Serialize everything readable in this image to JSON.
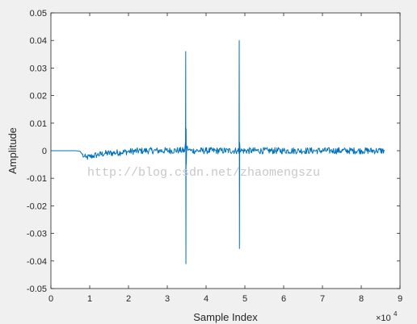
{
  "chart_data": {
    "type": "line",
    "xlabel": "Sample Index",
    "ylabel": "Amplitude",
    "x_exponent_label": "×10",
    "x_exponent_power": "4",
    "xlim": [
      0,
      90000
    ],
    "ylim": [
      -0.05,
      0.05
    ],
    "x_ticks": [
      0,
      10000,
      20000,
      30000,
      40000,
      50000,
      60000,
      70000,
      80000,
      90000
    ],
    "x_tick_labels": [
      "0",
      "1",
      "2",
      "3",
      "4",
      "5",
      "6",
      "7",
      "8",
      "9"
    ],
    "y_ticks": [
      -0.05,
      -0.04,
      -0.03,
      -0.02,
      -0.01,
      0,
      0.01,
      0.02,
      0.03,
      0.04,
      0.05
    ],
    "y_tick_labels": [
      "-0.05",
      "-0.04",
      "-0.03",
      "-0.02",
      "-0.01",
      "0",
      "0.01",
      "0.02",
      "0.03",
      "0.04",
      "0.05"
    ],
    "grid": false,
    "box": true,
    "line_color": "#0072bd",
    "series": [
      {
        "x": [
          0,
          6500,
          7500,
          8000,
          8500,
          9000,
          10000,
          11000,
          12000,
          14000,
          16000,
          18000,
          20000,
          24000,
          28000,
          33000,
          34500,
          34700,
          34750,
          34800,
          34850,
          34900,
          35000,
          35500,
          36000,
          40000,
          44000,
          48000,
          48300,
          48500,
          48550,
          48600,
          48650,
          48800,
          49000,
          52000,
          56000,
          60000,
          64000,
          68000,
          72000,
          76000,
          80000,
          84000,
          86000
        ],
        "y": [
          0,
          0,
          -0.0002,
          -0.0012,
          -0.0022,
          -0.0025,
          -0.0022,
          -0.0018,
          -0.0015,
          -0.001,
          -0.0008,
          -0.0006,
          -0.0003,
          0,
          0,
          0.0001,
          0,
          0.0035,
          0.036,
          -0.041,
          0.008,
          -0.005,
          0.0012,
          0.0004,
          0,
          0,
          0,
          0,
          0.0008,
          -0.001,
          0.04,
          -0.0355,
          0.003,
          -0.0005,
          0,
          0,
          0,
          0,
          0,
          0,
          0,
          0,
          0,
          0,
          0
        ],
        "noise_amplitude": 0.0012
      }
    ]
  },
  "watermark": "http://blog.csdn.net/zhaomengszu"
}
